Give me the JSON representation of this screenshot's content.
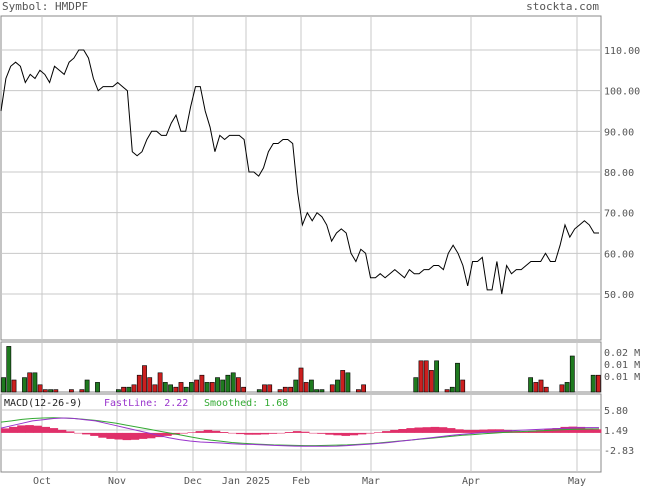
{
  "header": {
    "symbol_text": "Symbol: HMDPF",
    "site": "stockta.com"
  },
  "colors": {
    "grid": "#c8c8c8",
    "price_line": "#000000",
    "vol_up": "#1f7a1f",
    "vol_down": "#cc1f1f",
    "macd_hist": "#e0306a",
    "fastline": "#9933cc",
    "smoothed": "#33aa33"
  },
  "chart_data": [
    {
      "type": "line",
      "name": "price",
      "x_labels": [
        "Oct",
        "Nov",
        "Dec",
        "Jan 2025",
        "Feb",
        "Mar",
        "Apr",
        "May"
      ],
      "y_ticks": [
        110.0,
        100.0,
        90.0,
        80.0,
        70.0,
        60.0,
        50.0
      ],
      "y_tick_labels": [
        "110.00",
        "100.00",
        "90.00",
        "80.00",
        "70.00",
        "60.00",
        "50.00"
      ],
      "grid": true,
      "values": [
        95,
        103,
        106,
        107,
        106,
        102,
        104,
        103,
        105,
        104,
        102,
        106,
        105,
        104,
        107,
        108,
        110,
        110,
        108,
        103,
        100,
        101,
        101,
        101,
        102,
        101,
        100,
        85,
        84,
        85,
        88,
        90,
        90,
        89,
        89,
        92,
        94,
        90,
        90,
        96,
        101,
        101,
        95,
        91,
        85,
        89,
        88,
        89,
        89,
        89,
        88,
        80,
        80,
        79,
        81,
        85,
        87,
        87,
        88,
        88,
        87,
        75,
        67,
        70,
        68,
        70,
        69,
        67,
        63,
        65,
        66,
        65,
        60,
        58,
        61,
        60,
        54,
        54,
        55,
        54,
        55,
        56,
        55,
        54,
        56,
        55,
        55,
        56,
        56,
        57,
        57,
        56,
        60,
        62,
        60,
        57,
        52,
        58,
        58,
        59,
        51,
        51,
        58,
        50,
        57,
        55,
        56,
        56,
        57,
        58,
        58,
        58,
        60,
        58,
        58,
        62,
        67,
        64,
        66,
        67,
        68,
        67,
        65,
        65
      ]
    },
    {
      "type": "bar",
      "name": "volume",
      "y_tick_labels": [
        "0.02 M",
        "0.01 M",
        "0.01 M"
      ],
      "bars": [
        {
          "v": 0.006,
          "c": "g"
        },
        {
          "v": 0.019,
          "c": "g"
        },
        {
          "v": 0.005,
          "c": "r"
        },
        {
          "v": 0.0,
          "c": "r"
        },
        {
          "v": 0.006,
          "c": "g"
        },
        {
          "v": 0.008,
          "c": "r"
        },
        {
          "v": 0.008,
          "c": "g"
        },
        {
          "v": 0.003,
          "c": "r"
        },
        {
          "v": 0.001,
          "c": "r"
        },
        {
          "v": 0.001,
          "c": "g"
        },
        {
          "v": 0.001,
          "c": "r"
        },
        {
          "v": 0.0,
          "c": "r"
        },
        {
          "v": 0.0,
          "c": "g"
        },
        {
          "v": 0.001,
          "c": "r"
        },
        {
          "v": 0.0,
          "c": "g"
        },
        {
          "v": 0.001,
          "c": "r"
        },
        {
          "v": 0.005,
          "c": "g"
        },
        {
          "v": 0.0,
          "c": "r"
        },
        {
          "v": 0.004,
          "c": "g"
        },
        {
          "v": 0.0,
          "c": "r"
        },
        {
          "v": 0.0,
          "c": "g"
        },
        {
          "v": 0.0,
          "c": "r"
        },
        {
          "v": 0.001,
          "c": "g"
        },
        {
          "v": 0.002,
          "c": "r"
        },
        {
          "v": 0.002,
          "c": "g"
        },
        {
          "v": 0.003,
          "c": "r"
        },
        {
          "v": 0.007,
          "c": "r"
        },
        {
          "v": 0.011,
          "c": "r"
        },
        {
          "v": 0.006,
          "c": "r"
        },
        {
          "v": 0.003,
          "c": "r"
        },
        {
          "v": 0.008,
          "c": "r"
        },
        {
          "v": 0.004,
          "c": "g"
        },
        {
          "v": 0.003,
          "c": "g"
        },
        {
          "v": 0.002,
          "c": "r"
        },
        {
          "v": 0.004,
          "c": "r"
        },
        {
          "v": 0.002,
          "c": "g"
        },
        {
          "v": 0.004,
          "c": "g"
        },
        {
          "v": 0.005,
          "c": "r"
        },
        {
          "v": 0.007,
          "c": "r"
        },
        {
          "v": 0.004,
          "c": "g"
        },
        {
          "v": 0.004,
          "c": "r"
        },
        {
          "v": 0.006,
          "c": "g"
        },
        {
          "v": 0.005,
          "c": "g"
        },
        {
          "v": 0.007,
          "c": "g"
        },
        {
          "v": 0.008,
          "c": "g"
        },
        {
          "v": 0.006,
          "c": "r"
        },
        {
          "v": 0.002,
          "c": "r"
        },
        {
          "v": 0.0,
          "c": "r"
        },
        {
          "v": 0.0,
          "c": "r"
        },
        {
          "v": 0.001,
          "c": "g"
        },
        {
          "v": 0.003,
          "c": "r"
        },
        {
          "v": 0.003,
          "c": "r"
        },
        {
          "v": 0.0,
          "c": "r"
        },
        {
          "v": 0.001,
          "c": "r"
        },
        {
          "v": 0.002,
          "c": "r"
        },
        {
          "v": 0.002,
          "c": "r"
        },
        {
          "v": 0.005,
          "c": "g"
        },
        {
          "v": 0.01,
          "c": "r"
        },
        {
          "v": 0.004,
          "c": "r"
        },
        {
          "v": 0.005,
          "c": "g"
        },
        {
          "v": 0.001,
          "c": "g"
        },
        {
          "v": 0.001,
          "c": "g"
        },
        {
          "v": 0.0,
          "c": "g"
        },
        {
          "v": 0.003,
          "c": "r"
        },
        {
          "v": 0.005,
          "c": "g"
        },
        {
          "v": 0.009,
          "c": "r"
        },
        {
          "v": 0.008,
          "c": "g"
        },
        {
          "v": 0.0,
          "c": "g"
        },
        {
          "v": 0.001,
          "c": "r"
        },
        {
          "v": 0.003,
          "c": "r"
        },
        {
          "v": 0.0,
          "c": "g"
        },
        {
          "v": 0.0,
          "c": "r"
        },
        {
          "v": 0.0,
          "c": "g"
        },
        {
          "v": 0.0,
          "c": "r"
        },
        {
          "v": 0.0,
          "c": "r"
        },
        {
          "v": 0.0,
          "c": "g"
        },
        {
          "v": 0.0,
          "c": "r"
        },
        {
          "v": 0.0,
          "c": "g"
        },
        {
          "v": 0.0,
          "c": "r"
        },
        {
          "v": 0.006,
          "c": "g"
        },
        {
          "v": 0.013,
          "c": "r"
        },
        {
          "v": 0.013,
          "c": "r"
        },
        {
          "v": 0.009,
          "c": "r"
        },
        {
          "v": 0.013,
          "c": "g"
        },
        {
          "v": 0.0,
          "c": "r"
        },
        {
          "v": 0.001,
          "c": "r"
        },
        {
          "v": 0.002,
          "c": "g"
        },
        {
          "v": 0.012,
          "c": "g"
        },
        {
          "v": 0.005,
          "c": "r"
        },
        {
          "v": 0.0,
          "c": "r"
        },
        {
          "v": 0.0,
          "c": "g"
        },
        {
          "v": 0.0,
          "c": "r"
        },
        {
          "v": 0.0,
          "c": "g"
        },
        {
          "v": 0.0,
          "c": "g"
        },
        {
          "v": 0.0,
          "c": "r"
        },
        {
          "v": 0.0,
          "c": "g"
        },
        {
          "v": 0.0,
          "c": "r"
        },
        {
          "v": 0.0,
          "c": "r"
        },
        {
          "v": 0.0,
          "c": "g"
        },
        {
          "v": 0.0,
          "c": "r"
        },
        {
          "v": 0.0,
          "c": "g"
        },
        {
          "v": 0.006,
          "c": "g"
        },
        {
          "v": 0.004,
          "c": "r"
        },
        {
          "v": 0.005,
          "c": "r"
        },
        {
          "v": 0.002,
          "c": "r"
        },
        {
          "v": 0.0,
          "c": "r"
        },
        {
          "v": 0.0,
          "c": "r"
        },
        {
          "v": 0.003,
          "c": "r"
        },
        {
          "v": 0.004,
          "c": "g"
        },
        {
          "v": 0.015,
          "c": "g"
        },
        {
          "v": 0.0,
          "c": "r"
        },
        {
          "v": 0.0,
          "c": "r"
        },
        {
          "v": 0.0,
          "c": "g"
        },
        {
          "v": 0.007,
          "c": "g"
        },
        {
          "v": 0.007,
          "c": "r"
        }
      ]
    },
    {
      "type": "line",
      "name": "macd",
      "title": "MACD(12-26-9)",
      "fastline_label": "FastLine: 2.22",
      "smoothed_label": "Smoothed: 1.68",
      "y_ticks": [
        5.8,
        1.49,
        -2.83
      ],
      "y_tick_labels": [
        "5.80",
        "1.49",
        "-2.83"
      ],
      "hist": [
        1.5,
        2.0,
        2.5,
        2.6,
        2.4,
        2.0,
        1.6,
        1.0,
        0.5,
        0.0,
        -0.5,
        -1.0,
        -1.6,
        -2.0,
        -2.2,
        -2.4,
        -2.3,
        -2.0,
        -1.8,
        -1.4,
        -1.0,
        -0.6,
        -0.2,
        0.2,
        0.6,
        1.0,
        0.7,
        0.3,
        -0.1,
        -0.4,
        -0.6,
        -0.6,
        -0.5,
        -0.3,
        0.0,
        0.3,
        0.6,
        0.4,
        0.0,
        -0.3,
        -0.6,
        -0.8,
        -1.0,
        -0.8,
        -0.5,
        -0.2,
        0.2,
        0.6,
        1.0,
        1.3,
        1.6,
        1.8,
        1.9,
        2.0,
        1.9,
        1.6,
        1.2,
        1.0,
        1.0,
        1.1,
        1.2,
        1.2,
        1.0,
        0.6,
        0.4,
        0.5,
        0.9,
        1.3,
        1.6,
        2.0,
        2.1,
        2.0,
        1.5,
        1.2
      ],
      "fast": [
        2,
        3,
        4,
        5,
        5.5,
        6,
        6.2,
        6,
        5.5,
        5,
        4,
        3,
        2,
        1,
        0,
        -1,
        -2,
        -2.8,
        -3.4,
        -3.8,
        -4,
        -4.2,
        -4.5,
        -4.7,
        -4.8,
        -5,
        -5.2,
        -5.4,
        -5.5,
        -5.6,
        -5.6,
        -5.6,
        -5.5,
        -5.3,
        -5,
        -4.7,
        -4.4,
        -4,
        -3.5,
        -3,
        -2.5,
        -2,
        -1.5,
        -1,
        -0.6,
        -0.2,
        0.2,
        0.5,
        0.8,
        1,
        1.2,
        1.4,
        1.6,
        1.8,
        2,
        2.1,
        2.2,
        2.22
      ],
      "smooth": [
        4.5,
        5,
        5.6,
        6,
        6.2,
        6.3,
        6.2,
        6,
        5.6,
        5.2,
        4.6,
        4,
        3.2,
        2.4,
        1.6,
        0.8,
        0,
        -0.8,
        -1.6,
        -2.4,
        -3,
        -3.5,
        -4,
        -4.3,
        -4.6,
        -4.8,
        -5,
        -5.1,
        -5.2,
        -5.3,
        -5.3,
        -5.2,
        -5.1,
        -5,
        -4.8,
        -4.5,
        -4.2,
        -3.8,
        -3.4,
        -3,
        -2.6,
        -2.2,
        -1.8,
        -1.4,
        -1,
        -0.7,
        -0.4,
        -0.1,
        0.2,
        0.4,
        0.6,
        0.8,
        1,
        1.2,
        1.4,
        1.5,
        1.6,
        1.68
      ]
    }
  ]
}
